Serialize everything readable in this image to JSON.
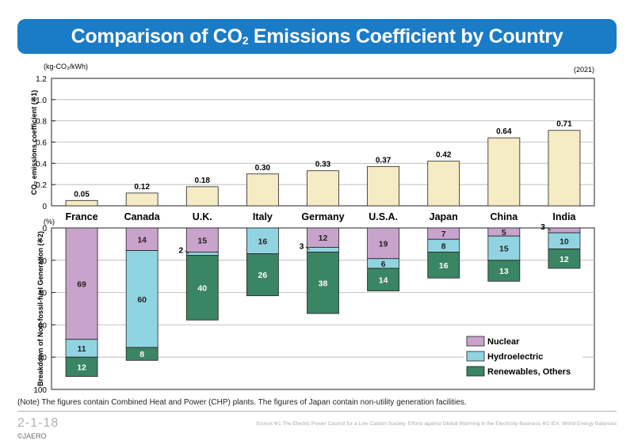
{
  "title_main": "Comparison of CO",
  "title_sub": "2",
  "title_rest": " Emissions Coefficient by Country",
  "chart_data": [
    {
      "type": "bar",
      "year_label": "(2021)",
      "unit_label": "(kg-CO₂/kWh)",
      "ylabel": "CO₂ emissions coefficient (※1)",
      "ylim": [
        0,
        1.2
      ],
      "yticks": [
        "0",
        "0.2",
        "0.4",
        "0.6",
        "0.8",
        "1.0",
        "1.2"
      ],
      "categories": [
        "France",
        "Canada",
        "U.K.",
        "Italy",
        "Germany",
        "U.S.A.",
        "Japan",
        "China",
        "India"
      ],
      "values": [
        0.05,
        0.12,
        0.18,
        0.3,
        0.33,
        0.37,
        0.42,
        0.64,
        0.71
      ],
      "labels": [
        "0.05",
        "0.12",
        "0.18",
        "0.30",
        "0.33",
        "0.37",
        "0.42",
        "0.64",
        "0.71"
      ],
      "color": "#f5ebc4"
    },
    {
      "type": "bar",
      "stacked": true,
      "unit_label": "(%)",
      "ylabel": "Breakdown of Non-fossil-fuel Generation (※2)",
      "ylim": [
        0,
        100
      ],
      "inverted": true,
      "yticks": [
        "0",
        "20",
        "40",
        "60",
        "80",
        "100"
      ],
      "categories": [
        "France",
        "Canada",
        "U.K.",
        "Italy",
        "Germany",
        "U.S.A.",
        "Japan",
        "China",
        "India"
      ],
      "series": [
        {
          "name": "Nuclear",
          "color": "#c8a4cc",
          "values": [
            69,
            14,
            15,
            0,
            12,
            19,
            7,
            5,
            3
          ]
        },
        {
          "name": "Hydroelectric",
          "color": "#91d4e1",
          "values": [
            11,
            60,
            2,
            16,
            3,
            6,
            8,
            15,
            10
          ]
        },
        {
          "name": "Renewables, Others",
          "color": "#3a8563",
          "values": [
            12,
            8,
            40,
            26,
            38,
            14,
            16,
            13,
            12
          ]
        }
      ],
      "legend_position": "bottom-right"
    }
  ],
  "note": "(Note) The figures contain Combined Heat and Power (CHP) plants. The figures of Japan contain non-utility generation facilities.",
  "figure_id": "2-1-18",
  "copyright": "©JAERO",
  "source": "Source:※1 The Electric Power Council for a Low Carbon Society, Efforts against Global Warming in the Electricity Business  ※2 IEA, World Energy Balances"
}
